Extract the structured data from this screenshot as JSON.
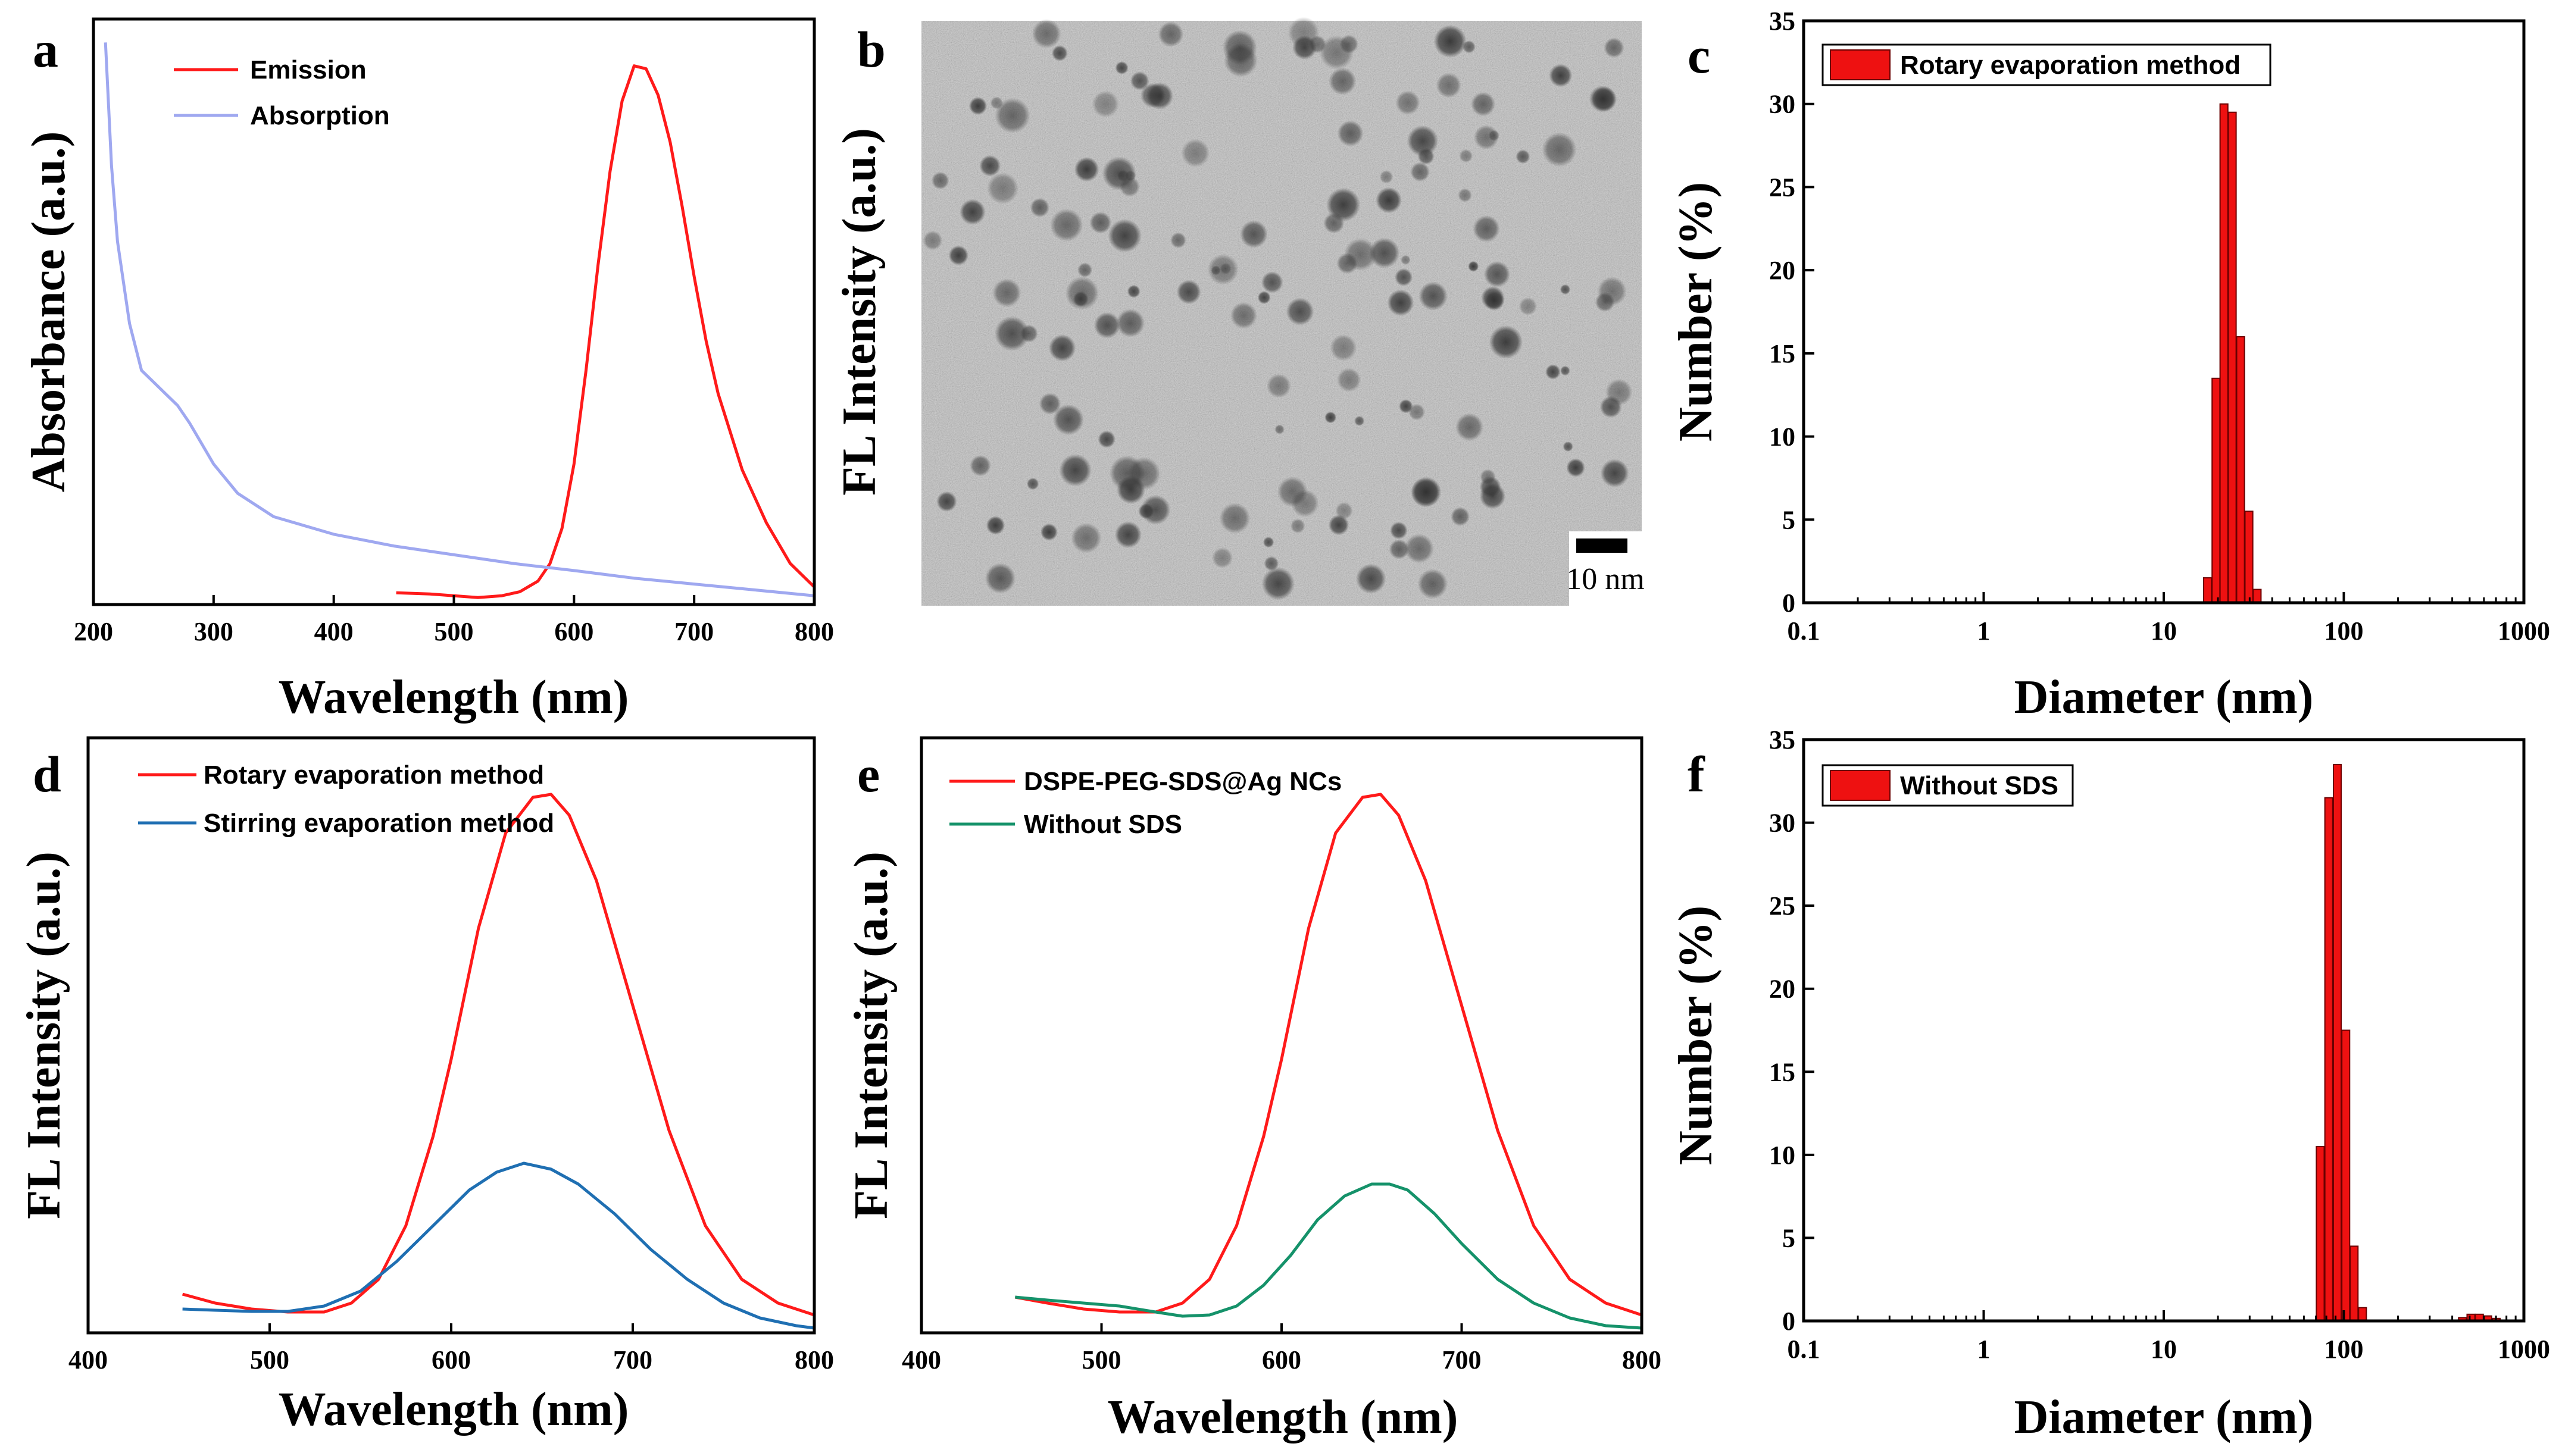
{
  "figure": {
    "panels": {
      "a": "a",
      "b": "b",
      "c": "c",
      "d": "d",
      "e": "e",
      "f": "f"
    },
    "tem": {
      "scale_bar_label": "10 nm",
      "ylabel": "FL Intensity (a.u.)"
    }
  },
  "colors": {
    "red": "#ff1a1a",
    "lavender": "#9fa8f0",
    "blue": "#1f6fb2",
    "green": "#15926a",
    "bar_fill": "#ee1111",
    "bar_edge": "#6a0000"
  },
  "chart_data": [
    {
      "id": "a",
      "type": "line",
      "xlabel": "Wavelength (nm)",
      "ylabel": "Absorbance (a.u.)",
      "xlim": [
        200,
        800
      ],
      "ylim": [
        0,
        1
      ],
      "xticks": [
        200,
        300,
        400,
        500,
        600,
        700,
        800
      ],
      "series": [
        {
          "name": "Emission",
          "color": "red",
          "x": [
            452,
            480,
            500,
            520,
            540,
            555,
            570,
            580,
            590,
            600,
            610,
            620,
            630,
            640,
            650,
            660,
            670,
            680,
            690,
            700,
            710,
            720,
            740,
            760,
            780,
            800
          ],
          "y": [
            0.02,
            0.018,
            0.015,
            0.012,
            0.015,
            0.022,
            0.04,
            0.07,
            0.13,
            0.24,
            0.4,
            0.58,
            0.74,
            0.86,
            0.92,
            0.915,
            0.87,
            0.79,
            0.68,
            0.56,
            0.45,
            0.36,
            0.23,
            0.14,
            0.07,
            0.03
          ]
        },
        {
          "name": "Absorption",
          "color": "lavender",
          "x": [
            210,
            215,
            220,
            230,
            240,
            250,
            260,
            270,
            280,
            300,
            320,
            350,
            400,
            450,
            500,
            550,
            600,
            650,
            700,
            750,
            800
          ],
          "y": [
            0.96,
            0.75,
            0.62,
            0.48,
            0.4,
            0.38,
            0.36,
            0.34,
            0.31,
            0.24,
            0.19,
            0.15,
            0.12,
            0.1,
            0.085,
            0.07,
            0.058,
            0.045,
            0.035,
            0.025,
            0.015
          ]
        }
      ]
    },
    {
      "id": "c",
      "type": "bar",
      "xscale": "log",
      "xlabel": "Diameter (nm)",
      "ylabel": "Number (%)",
      "xlim": [
        0.1,
        1000
      ],
      "ylim": [
        0,
        35
      ],
      "xticks": [
        "0.1",
        "1",
        "10",
        "100",
        "1000"
      ],
      "yticks": [
        0,
        5,
        10,
        15,
        20,
        25,
        30,
        35
      ],
      "legend": "Rotary evaporation method",
      "categories": [
        17.5,
        19.5,
        21.6,
        24.0,
        26.7,
        29.7,
        33.0,
        36.7
      ],
      "values": [
        1.5,
        13.5,
        30.0,
        29.5,
        16.0,
        5.5,
        0.8,
        0.0
      ]
    },
    {
      "id": "d",
      "type": "line",
      "xlabel": "Wavelength (nm)",
      "ylabel": "FL Intensity (a.u.)",
      "xlim": [
        400,
        800
      ],
      "ylim": [
        0,
        1
      ],
      "xticks": [
        400,
        500,
        600,
        700,
        800
      ],
      "series": [
        {
          "name": "Rotary evaporation method",
          "color": "red",
          "x": [
            452,
            470,
            490,
            510,
            530,
            545,
            560,
            575,
            590,
            600,
            615,
            630,
            645,
            655,
            665,
            680,
            700,
            720,
            740,
            760,
            780,
            800
          ],
          "y": [
            0.065,
            0.05,
            0.04,
            0.035,
            0.035,
            0.05,
            0.09,
            0.18,
            0.33,
            0.46,
            0.68,
            0.84,
            0.9,
            0.905,
            0.87,
            0.76,
            0.55,
            0.34,
            0.18,
            0.09,
            0.05,
            0.03
          ]
        },
        {
          "name": "Stirring evaporation method",
          "color": "blue",
          "x": [
            452,
            470,
            490,
            510,
            530,
            550,
            570,
            590,
            610,
            625,
            640,
            655,
            670,
            690,
            710,
            730,
            750,
            770,
            790,
            800
          ],
          "y": [
            0.04,
            0.038,
            0.036,
            0.036,
            0.045,
            0.07,
            0.12,
            0.18,
            0.24,
            0.27,
            0.285,
            0.275,
            0.25,
            0.2,
            0.14,
            0.09,
            0.05,
            0.025,
            0.012,
            0.008
          ]
        }
      ]
    },
    {
      "id": "e",
      "type": "line",
      "xlabel": "Wavelength (nm)",
      "ylabel": "FL Intensity (a.u.)",
      "xlim": [
        400,
        800
      ],
      "ylim": [
        0,
        1
      ],
      "xticks": [
        400,
        500,
        600,
        700,
        800
      ],
      "series": [
        {
          "name": "DSPE-PEG-SDS@Ag NCs",
          "color": "red",
          "x": [
            452,
            470,
            490,
            510,
            530,
            545,
            560,
            575,
            590,
            600,
            615,
            630,
            645,
            655,
            665,
            680,
            700,
            720,
            740,
            760,
            780,
            800
          ],
          "y": [
            0.06,
            0.05,
            0.04,
            0.035,
            0.035,
            0.05,
            0.09,
            0.18,
            0.33,
            0.46,
            0.68,
            0.84,
            0.9,
            0.905,
            0.87,
            0.76,
            0.55,
            0.34,
            0.18,
            0.09,
            0.05,
            0.03
          ]
        },
        {
          "name": "Without SDS",
          "color": "green",
          "x": [
            452,
            470,
            490,
            510,
            530,
            545,
            560,
            575,
            590,
            605,
            620,
            635,
            650,
            660,
            670,
            685,
            700,
            720,
            740,
            760,
            780,
            800
          ],
          "y": [
            0.06,
            0.055,
            0.05,
            0.045,
            0.035,
            0.028,
            0.03,
            0.045,
            0.08,
            0.13,
            0.19,
            0.23,
            0.25,
            0.25,
            0.24,
            0.2,
            0.15,
            0.09,
            0.05,
            0.025,
            0.012,
            0.008
          ]
        }
      ]
    },
    {
      "id": "f",
      "type": "bar",
      "xscale": "log",
      "xlabel": "Diameter (nm)",
      "ylabel": "Number (%)",
      "xlim": [
        0.1,
        1000
      ],
      "ylim": [
        0,
        35
      ],
      "xticks": [
        "0.1",
        "1",
        "10",
        "100",
        "1000"
      ],
      "yticks": [
        0,
        5,
        10,
        15,
        20,
        25,
        30,
        35
      ],
      "legend": "Without SDS",
      "categories": [
        74,
        82.5,
        92,
        102.5,
        114,
        127,
        141.5,
        456,
        508,
        566,
        630,
        702
      ],
      "values": [
        10.5,
        31.5,
        33.5,
        17.5,
        4.5,
        0.8,
        0.0,
        0.2,
        0.4,
        0.4,
        0.3,
        0.15
      ]
    }
  ]
}
